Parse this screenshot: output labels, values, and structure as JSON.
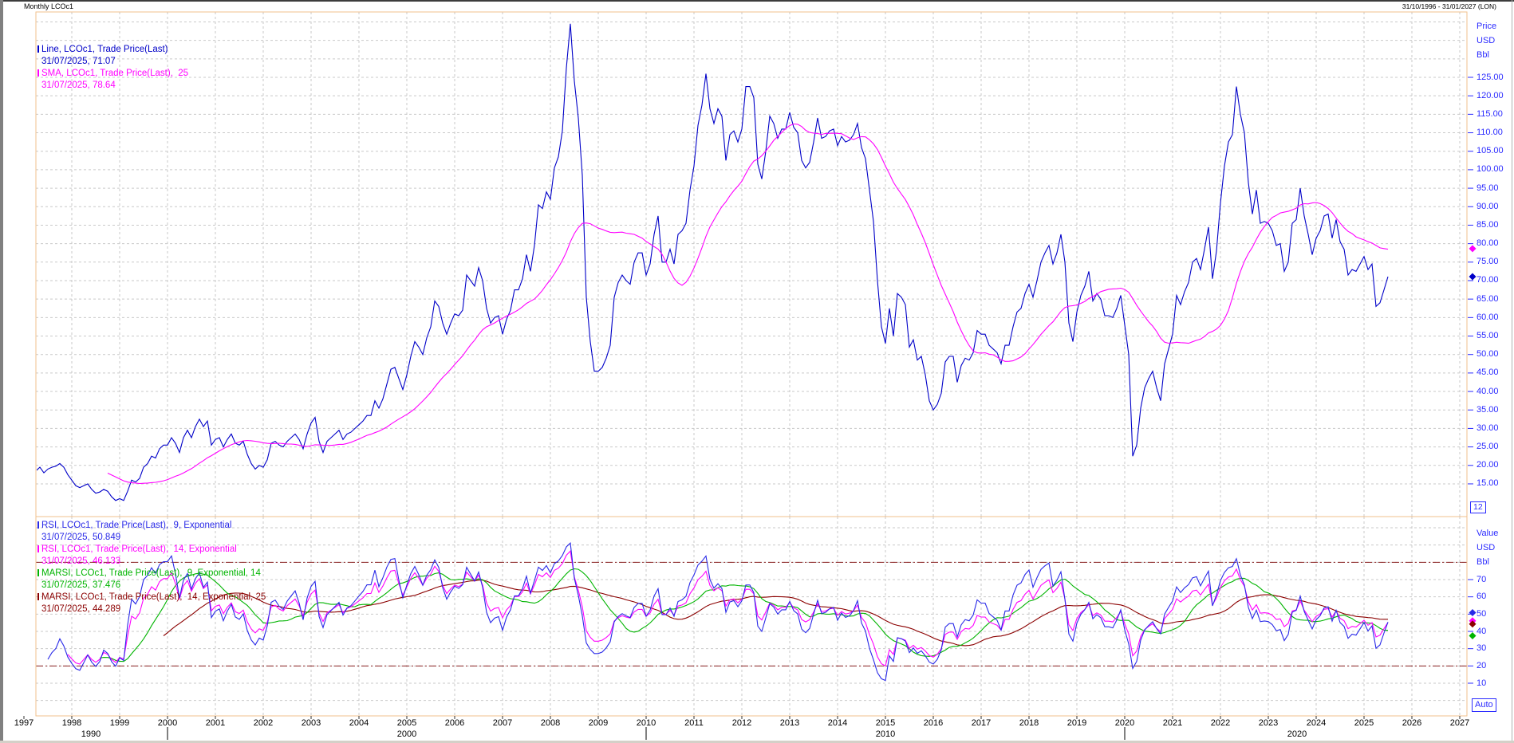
{
  "window": {
    "title": "Monthly LCOc1",
    "date_range": "31/10/1996 - 31/01/2027 (LON)"
  },
  "colors": {
    "price_line": "#0000c8",
    "sma_line": "#ff00ff",
    "rsi9_line": "#2929e8",
    "rsi14_line": "#ff00ff",
    "marsi9_line": "#00b400",
    "marsi14_line": "#8b0000",
    "threshold": "#8b2222",
    "panel_border": "#f2c18c",
    "grid": "#c9c9c9",
    "axis_text": "#2b2bff",
    "year_text": "#000000"
  },
  "main_panel": {
    "legend": [
      {
        "label": "Line, LCOc1, Trade Price(Last)",
        "value": "31/07/2025, 71.07",
        "color": "#0000c8"
      },
      {
        "label": "SMA, LCOc1, Trade Price(Last),  25",
        "value": "31/07/2025, 78.64",
        "color": "#ff00ff"
      }
    ],
    "axis_title": "Price\nUSD\nBbl",
    "ticks": [
      125,
      120,
      115,
      110,
      105,
      100,
      95,
      90,
      85,
      80,
      75,
      70,
      65,
      60,
      55,
      50,
      45,
      40,
      35,
      30,
      25,
      20,
      15
    ],
    "markers": [
      {
        "value": 78.64,
        "color": "#ff00ff"
      },
      {
        "value": 71.07,
        "color": "#0000c8"
      }
    ]
  },
  "rsi_panel": {
    "legend": [
      {
        "label": "RSI, LCOc1, Trade Price(Last),  9, Exponential",
        "value": "31/07/2025, 50.849",
        "color": "#2929e8"
      },
      {
        "label": "RSI, LCOc1, Trade Price(Last),  14, Exponential",
        "value": "31/07/2025, 46.133",
        "color": "#ff00ff"
      },
      {
        "label": "MARSI, LCOc1, Trade Price(Last),  9, Exponential, 14",
        "value": "31/07/2025, 37.476",
        "color": "#00b400"
      },
      {
        "label": "MARSI, LCOc1, Trade Price(Last),  14, Exponential, 25",
        "value": "31/07/2025, 44.289",
        "color": "#8b0000"
      }
    ],
    "axis_title": "Value\nUSD\nBbl",
    "ticks": [
      70,
      60,
      50,
      40,
      30,
      20,
      10
    ],
    "thresholds": [
      80,
      20
    ],
    "scale_box": "12",
    "auto_button": "Auto",
    "markers": [
      {
        "value": 50.849,
        "color": "#2929e8"
      },
      {
        "value": 46.133,
        "color": "#ff00ff"
      },
      {
        "value": 44.289,
        "color": "#8b0000"
      },
      {
        "value": 37.476,
        "color": "#00b400"
      }
    ]
  },
  "x_axis": {
    "years": [
      1997,
      1998,
      1999,
      2000,
      2001,
      2002,
      2003,
      2004,
      2005,
      2006,
      2007,
      2008,
      2009,
      2010,
      2011,
      2012,
      2013,
      2014,
      2015,
      2016,
      2017,
      2018,
      2019,
      2020,
      2021,
      2022,
      2023,
      2024,
      2025,
      2026,
      2027
    ],
    "decade_labels": [
      {
        "label": "1990",
        "at": 1998.4
      },
      {
        "label": "2000",
        "at": 2005.0
      },
      {
        "label": "2010",
        "at": 2015.0
      },
      {
        "label": "2020",
        "at": 2023.6
      }
    ],
    "decade_ticks": [
      2000,
      2010,
      2020
    ]
  },
  "chart_data": {
    "type": "line",
    "title": "Monthly LCOc1",
    "x_range": [
      1996.83,
      2027.08
    ],
    "main_value_range_visible": [
      15,
      125
    ],
    "rsi_value_range_visible": [
      10,
      70
    ],
    "rsi_thresholds": [
      80,
      20
    ],
    "series_info": [
      {
        "name": "Trade Price (Last), monthly",
        "type": "price"
      },
      {
        "name": "SMA 25 of price",
        "type": "sma",
        "period": 25
      },
      {
        "name": "RSI 9 Exponential",
        "type": "rsi",
        "period": 9
      },
      {
        "name": "RSI 14 Exponential",
        "type": "rsi",
        "period": 14
      },
      {
        "name": "MARSI 9 Exp, MA 14",
        "type": "marsi",
        "rsi_period": 9,
        "ma_period": 14
      },
      {
        "name": "MARSI 14 Exp, MA 25",
        "type": "marsi",
        "rsi_period": 14,
        "ma_period": 25
      }
    ],
    "price_start": "1996-10",
    "price_monthly_by_year": [
      [
        24.5,
        23.5,
        24.0
      ],
      [
        23.5,
        21.5,
        19.5,
        18.5,
        19.5,
        18.0,
        19.0,
        19.5,
        19.8,
        20.5,
        19.5,
        17.5
      ],
      [
        16.0,
        14.5,
        14.0,
        14.5,
        15.0,
        13.5,
        12.5,
        12.8,
        13.5,
        13.0,
        11.5,
        10.5
      ],
      [
        11.0,
        10.5,
        13.0,
        16.0,
        15.5,
        16.5,
        19.5,
        20.5,
        22.5,
        22.0,
        24.5,
        25.5
      ],
      [
        25.5,
        27.5,
        26.0,
        23.5,
        27.5,
        29.5,
        27.5,
        30.5,
        32.5,
        30.5,
        32.0,
        25.5
      ],
      [
        27.0,
        27.5,
        25.0,
        27.0,
        28.5,
        26.0,
        25.5,
        26.5,
        23.0,
        20.5,
        19.0,
        20.0
      ],
      [
        19.5,
        21.5,
        26.0,
        26.5,
        25.5,
        25.0,
        26.5,
        27.5,
        28.5,
        27.0,
        24.5,
        28.5
      ],
      [
        31.5,
        33.0,
        26.5,
        23.5,
        26.5,
        27.5,
        28.5,
        29.5,
        27.0,
        28.5,
        29.0,
        30.0
      ],
      [
        31.0,
        32.0,
        33.5,
        33.5,
        37.5,
        35.5,
        38.0,
        42.0,
        46.0,
        46.5,
        43.5,
        40.5
      ],
      [
        44.5,
        49.5,
        53.5,
        52.0,
        50.0,
        54.5,
        57.5,
        64.5,
        63.0,
        58.5,
        55.5,
        58.5
      ],
      [
        61.0,
        60.5,
        62.0,
        71.5,
        70.0,
        68.5,
        73.5,
        70.0,
        62.5,
        58.5,
        60.0,
        60.5
      ],
      [
        55.5,
        59.5,
        62.0,
        67.5,
        67.5,
        70.5,
        77.0,
        72.5,
        79.5,
        90.5,
        89.5,
        94.0
      ],
      [
        92.0,
        100.5,
        103.5,
        110.5,
        127.5,
        139.5,
        124.0,
        114.0,
        98.5,
        65.5,
        53.5,
        45.5
      ],
      [
        45.5,
        46.5,
        49.0,
        52.5,
        65.5,
        69.5,
        71.5,
        70.0,
        69.0,
        75.0,
        77.5,
        77.5
      ],
      [
        71.5,
        74.5,
        82.5,
        87.5,
        75.0,
        75.0,
        78.5,
        74.5,
        82.5,
        83.5,
        85.5,
        94.5
      ],
      [
        101.0,
        112.0,
        117.5,
        126.0,
        116.5,
        112.5,
        116.5,
        114.5,
        102.5,
        109.5,
        110.5,
        107.5
      ],
      [
        111.0,
        122.5,
        122.5,
        119.5,
        101.5,
        97.5,
        105.0,
        114.5,
        112.5,
        108.5,
        111.0,
        111.0
      ],
      [
        115.5,
        111.5,
        110.0,
        102.5,
        100.5,
        102.0,
        107.5,
        114.0,
        108.5,
        109.0,
        110.5,
        111.0
      ],
      [
        106.5,
        109.0,
        107.5,
        108.0,
        109.5,
        112.5,
        106.0,
        103.0,
        94.5,
        86.0,
        70.0,
        57.5
      ],
      [
        53.0,
        62.5,
        55.0,
        66.5,
        65.5,
        63.5,
        52.0,
        54.0,
        48.5,
        49.5,
        44.5,
        37.5
      ],
      [
        35.0,
        36.5,
        39.5,
        48.0,
        49.5,
        49.5,
        42.5,
        47.0,
        49.0,
        48.5,
        50.5,
        56.5
      ],
      [
        55.5,
        55.5,
        52.5,
        51.5,
        50.5,
        47.5,
        52.5,
        52.5,
        57.5,
        61.5,
        62.5,
        66.5
      ],
      [
        69.0,
        65.5,
        70.0,
        75.0,
        77.5,
        79.5,
        74.5,
        77.5,
        82.5,
        75.0,
        58.5,
        53.5
      ],
      [
        61.5,
        66.0,
        68.5,
        72.5,
        64.5,
        66.5,
        65.0,
        60.5,
        60.5,
        60.0,
        62.5,
        66.0
      ],
      [
        58.0,
        50.0,
        22.5,
        25.5,
        35.5,
        41.0,
        43.5,
        45.5,
        41.0,
        37.5,
        47.5,
        51.5
      ],
      [
        55.5,
        66.0,
        63.5,
        67.0,
        69.5,
        75.0,
        76.0,
        73.0,
        78.5,
        84.5,
        70.5,
        78.0
      ],
      [
        91.0,
        101.0,
        107.5,
        109.5,
        122.5,
        115.0,
        110.0,
        96.5,
        88.0,
        94.5,
        85.5,
        86.0
      ],
      [
        85.5,
        83.5,
        79.5,
        80.0,
        72.5,
        75.0,
        85.5,
        86.5,
        95.0,
        87.5,
        82.5,
        77.0
      ],
      [
        81.5,
        83.5,
        87.5,
        88.0,
        81.5,
        86.5,
        80.5,
        78.5,
        71.5,
        73.0,
        72.5,
        74.5
      ],
      [
        76.5,
        73.0,
        74.5,
        63.0,
        64.0,
        67.5,
        71.07
      ]
    ]
  }
}
